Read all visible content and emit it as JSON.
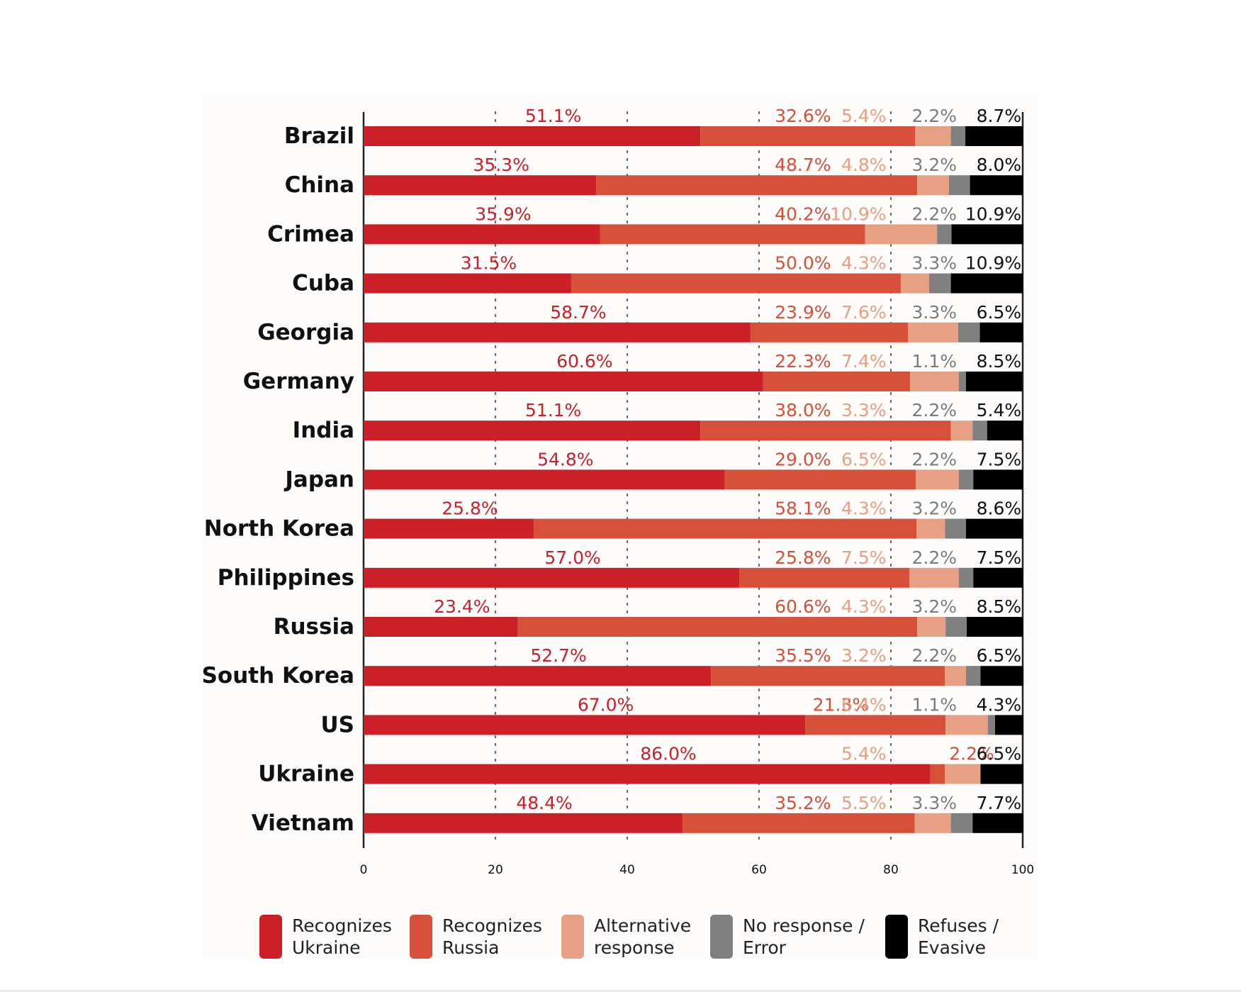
{
  "colors": {
    "recognizes_ukraine": "#cc1f27",
    "recognizes_russia": "#d6503a",
    "alternative": "#e8a084",
    "no_response": "#808080",
    "refuses": "#000000",
    "grid": "#666666"
  },
  "legend": [
    {
      "line1": "Recognizes",
      "line2": "Ukraine",
      "color": "#cc1f27"
    },
    {
      "line1": "Recognizes",
      "line2": "Russia",
      "color": "#d6503a"
    },
    {
      "line1": "Alternative",
      "line2": "response",
      "color": "#e8a084"
    },
    {
      "line1": "No response /",
      "line2": "Error",
      "color": "#808080"
    },
    {
      "line1": "Refuses /",
      "line2": "Evasive",
      "color": "#000000"
    }
  ],
  "chart_data": {
    "type": "bar",
    "orientation": "horizontal",
    "stacked": true,
    "xlim": [
      0,
      100
    ],
    "xticks": [
      "0",
      "20",
      "40",
      "60",
      "80",
      "100"
    ],
    "xtick_values": [
      0,
      20,
      40,
      60,
      80,
      100
    ],
    "grid": "dotted vertical at 20, 40, 60, 80",
    "categories": [
      "Brazil",
      "China",
      "Crimea",
      "Cuba",
      "Georgia",
      "Germany",
      "India",
      "Japan",
      "North Korea",
      "Philippines",
      "Russia",
      "South Korea",
      "US",
      "Ukraine",
      "Vietnam"
    ],
    "series": [
      {
        "name": "Recognizes Ukraine",
        "color": "#cc1f27",
        "values": [
          51.1,
          35.3,
          35.9,
          31.5,
          58.7,
          60.6,
          51.1,
          54.8,
          25.8,
          57.0,
          23.4,
          52.7,
          67.0,
          86.0,
          48.4
        ],
        "labels": [
          "51.1%",
          "35.3%",
          "35.9%",
          "31.5%",
          "58.7%",
          "60.6%",
          "51.1%",
          "54.8%",
          "25.8%",
          "57.0%",
          "23.4%",
          "52.7%",
          "67.0%",
          "86.0%",
          "48.4%"
        ]
      },
      {
        "name": "Recognizes Russia",
        "color": "#d6503a",
        "values": [
          32.6,
          48.7,
          40.2,
          50.0,
          23.9,
          22.3,
          38.0,
          29.0,
          58.1,
          25.8,
          60.6,
          35.5,
          21.3,
          2.2,
          35.2
        ],
        "labels": [
          "32.6%",
          "48.7%",
          "40.2%",
          "50.0%",
          "23.9%",
          "22.3%",
          "38.0%",
          "29.0%",
          "58.1%",
          "25.8%",
          "60.6%",
          "35.5%",
          "21.3%",
          "2.2%",
          "35.2%"
        ]
      },
      {
        "name": "Alternative response",
        "color": "#e8a084",
        "values": [
          5.4,
          4.8,
          10.9,
          4.3,
          7.6,
          7.4,
          3.3,
          6.5,
          4.3,
          7.5,
          4.3,
          3.2,
          6.4,
          5.4,
          5.5
        ],
        "labels": [
          "5.4%",
          "4.8%",
          "10.9%",
          "4.3%",
          "7.6%",
          "7.4%",
          "3.3%",
          "6.5%",
          "4.3%",
          "7.5%",
          "4.3%",
          "3.2%",
          "6.4%",
          "5.4%",
          "5.5%"
        ]
      },
      {
        "name": "No response / Error",
        "color": "#808080",
        "values": [
          2.2,
          3.2,
          2.2,
          3.3,
          3.3,
          1.1,
          2.2,
          2.2,
          3.2,
          2.2,
          3.2,
          2.2,
          1.1,
          0,
          3.3
        ],
        "labels": [
          "2.2%",
          "3.2%",
          "2.2%",
          "3.3%",
          "3.3%",
          "1.1%",
          "2.2%",
          "2.2%",
          "3.2%",
          "2.2%",
          "3.2%",
          "2.2%",
          "1.1%",
          "",
          "3.3%"
        ]
      },
      {
        "name": "Refuses / Evasive",
        "color": "#000000",
        "values": [
          8.7,
          8.0,
          10.9,
          10.9,
          6.5,
          8.5,
          5.4,
          7.5,
          8.6,
          7.5,
          8.5,
          6.5,
          4.3,
          6.5,
          7.7
        ],
        "labels": [
          "8.7%",
          "8.0%",
          "10.9%",
          "10.9%",
          "6.5%",
          "8.5%",
          "5.4%",
          "7.5%",
          "8.6%",
          "7.5%",
          "8.5%",
          "6.5%",
          "4.3%",
          "6.5%",
          "7.7%"
        ]
      }
    ]
  }
}
